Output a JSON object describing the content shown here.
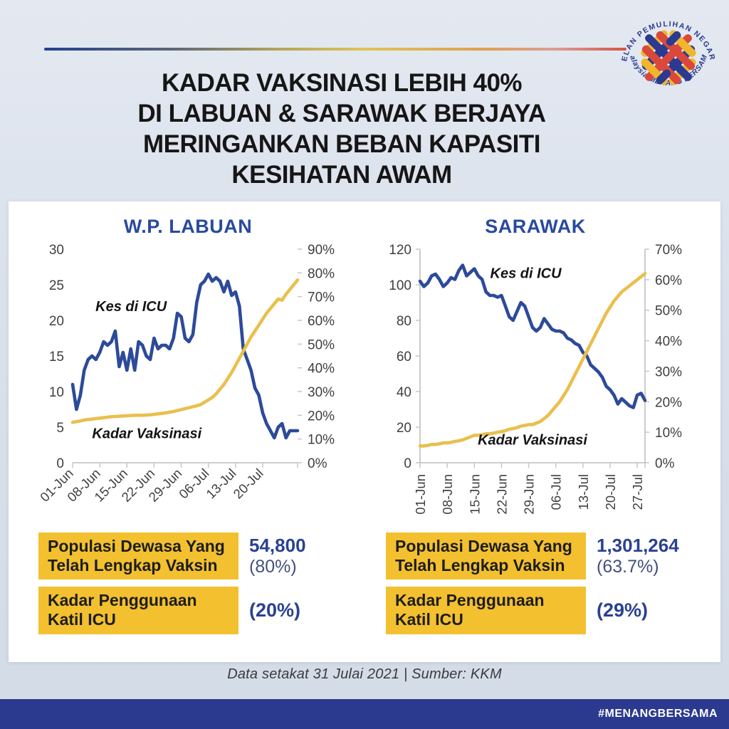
{
  "page": {
    "title_lines": [
      "KADAR VAKSINASI LEBIH 40%",
      "DI LABUAN & SARAWAK BERJAYA",
      "MERINGANKAN BEBAN KAPASITI",
      "KESIHATAN AWAM"
    ],
    "logo": {
      "arc_top": "PELAN PEMULIHAN NEGARA",
      "arc_bottom": "Malaysia MENANG BERSAMA"
    },
    "footer_note": "Data setakat 31 Julai 2021  |  Sumber: KKM",
    "hashtag": "#MENANGBERSAMA",
    "colors": {
      "line_blue": "#2d4a9a",
      "line_yellow": "#e9bf4e",
      "box_yellow": "#f3c02f",
      "value_blue": "#2b4191",
      "chart_title_blue": "#2a4a9e",
      "bottom_bar_blue": "#2b3a8e",
      "axis_text": "#3f3f3f"
    }
  },
  "stats": {
    "labuan": {
      "rows": [
        {
          "label": "Populasi Dewasa Yang Telah Lengkap Vaksin",
          "value": "54,800",
          "percent": "(80%)"
        },
        {
          "label": "Kadar Penggunaan Katil ICU",
          "value": "(20%)"
        }
      ]
    },
    "sarawak": {
      "rows": [
        {
          "label": "Populasi Dewasa Yang Telah Lengkap Vaksin",
          "value": "1,301,264",
          "percent": "(63.7%)"
        },
        {
          "label": "Kadar Penggunaan Katil ICU",
          "value": "(29%)"
        }
      ]
    }
  },
  "chart_data": [
    {
      "type": "line",
      "id": "labuan",
      "title": "W.P. LABUAN",
      "x_tick_labels": [
        "01-Jun",
        "08-Jun",
        "15-Jun",
        "22-Jun",
        "29-Jun",
        "06-Jul",
        "13-Jul",
        "20-Jul"
      ],
      "x_tick_indices": [
        0,
        7,
        14,
        21,
        28,
        35,
        42,
        49
      ],
      "x_label_rotation": 45,
      "left_axis": {
        "min": 0,
        "max": 30,
        "step": 5,
        "suffix": ""
      },
      "right_axis": {
        "min": 0,
        "max": 90,
        "step": 10,
        "suffix": "%"
      },
      "y_axis_lines": false,
      "series": [
        {
          "name": "Kes di ICU",
          "axis": "left",
          "color": "#2d4a9a",
          "values": [
            11,
            7.5,
            9.5,
            13,
            14.5,
            15,
            14.5,
            15.5,
            17,
            16.5,
            17,
            18.5,
            13.5,
            15.5,
            13,
            16,
            13,
            17,
            16.5,
            15,
            14.5,
            17.5,
            16,
            16.5,
            16.5,
            16,
            17.5,
            21,
            20.5,
            17.5,
            17,
            18,
            22.5,
            25,
            25.5,
            26.5,
            25.5,
            26,
            25.5,
            24,
            25.5,
            23.5,
            24,
            22,
            16,
            14.5,
            13,
            10.5,
            9.5,
            7,
            5.5,
            4.5,
            3.5,
            5,
            5.5,
            3.5,
            4.5,
            4.5,
            4.5
          ]
        },
        {
          "name": "Kadar Vaksinasi",
          "axis": "right",
          "color": "#e9bf4e",
          "values": [
            17,
            17.3,
            17.6,
            18,
            18.2,
            18.4,
            18.6,
            18.8,
            19,
            19.2,
            19.4,
            19.5,
            19.6,
            19.7,
            19.8,
            19.9,
            20,
            20,
            20,
            20.1,
            20.2,
            20.4,
            20.6,
            20.8,
            21,
            21.3,
            21.6,
            22,
            22.4,
            22.8,
            23.2,
            23.6,
            24,
            24.5,
            25.5,
            26.5,
            27.5,
            29,
            31,
            33,
            35.5,
            38,
            41,
            44,
            47,
            50,
            53,
            55.5,
            58,
            60.5,
            63,
            65,
            67,
            69,
            68.5,
            71,
            73,
            75,
            77
          ]
        }
      ],
      "annotations": [
        {
          "text": "Kes di ICU",
          "fx": 0.26,
          "fy": 0.29
        },
        {
          "text": "Kadar Vaksinasi",
          "fx": 0.33,
          "fy": 0.885
        }
      ]
    },
    {
      "type": "line",
      "id": "sarawak",
      "title": "SARAWAK",
      "x_tick_labels": [
        "01-Jun",
        "08-Jun",
        "15-Jun",
        "22-Jun",
        "29-Jun",
        "06-Jul",
        "13-Jul",
        "20-Jul",
        "27-Jul"
      ],
      "x_tick_indices": [
        0,
        7,
        14,
        21,
        28,
        35,
        42,
        49,
        56
      ],
      "x_label_rotation": 90,
      "left_axis": {
        "min": 0,
        "max": 120,
        "step": 20,
        "suffix": ""
      },
      "right_axis": {
        "min": 0,
        "max": 70,
        "step": 10,
        "suffix": "%"
      },
      "y_axis_lines": true,
      "series": [
        {
          "name": "Kes di ICU",
          "axis": "left",
          "color": "#2d4a9a",
          "values": [
            102,
            99,
            101,
            105,
            106,
            103,
            99,
            101,
            104,
            103,
            108,
            111,
            105,
            107,
            109,
            105,
            103,
            96,
            94,
            94,
            93,
            94,
            88,
            82,
            80,
            85,
            90,
            88,
            82,
            76,
            74,
            76,
            81,
            78,
            75,
            74,
            74,
            73,
            70,
            69,
            67,
            66,
            62,
            60,
            55,
            53,
            51,
            48,
            43,
            41,
            38,
            33,
            36,
            34,
            32,
            31,
            38,
            39,
            35
          ]
        },
        {
          "name": "Kadar Vaksinasi",
          "axis": "right",
          "color": "#e9bf4e",
          "values": [
            5.5,
            5.5,
            5.7,
            6,
            6,
            6.2,
            6.5,
            6.5,
            6.7,
            7,
            7.2,
            7.5,
            8,
            8.5,
            9,
            9,
            9.2,
            9.5,
            9.5,
            9.7,
            10,
            10.2,
            10.5,
            11,
            11.2,
            11.5,
            12,
            12.2,
            12.5,
            12.5,
            13,
            13.5,
            14.5,
            15.5,
            17,
            18.5,
            20,
            22,
            24,
            26.5,
            29,
            31.5,
            34,
            36.5,
            39,
            41.5,
            44,
            46.5,
            49,
            51,
            53,
            54.5,
            56,
            57,
            58,
            59,
            60,
            61,
            62
          ]
        }
      ],
      "annotations": [
        {
          "text": "Kes di ICU",
          "fx": 0.47,
          "fy": 0.135
        },
        {
          "text": "Kadar Vaksinasi",
          "fx": 0.5,
          "fy": 0.915
        }
      ]
    }
  ]
}
